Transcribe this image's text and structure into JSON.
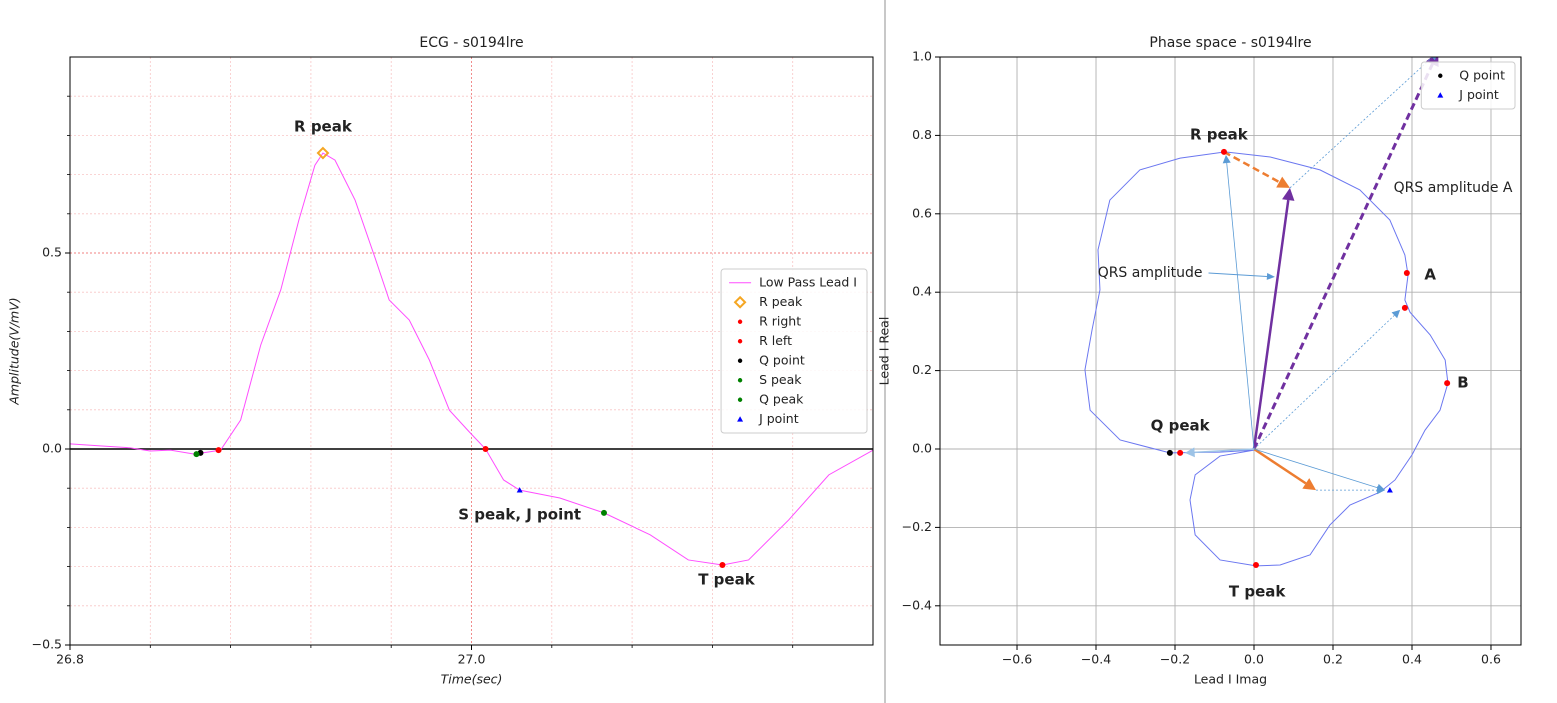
{
  "chart_data": [
    {
      "type": "line",
      "title": "ECG - s0194lre",
      "xlabel": "Time(sec)",
      "ylabel": "Amplitude(V/mV)",
      "xlim": [
        26.8,
        27.2
      ],
      "ylim": [
        -0.5,
        1.0
      ],
      "xticks": [
        26.8,
        {
          "value": 27,
          "label": "27.0"
        }
      ],
      "yticks": [
        {
          "value": -0.5,
          "label": "−0.5"
        },
        {
          "value": 0,
          "label": "0.0"
        },
        0.5
      ],
      "xticks_minor": [
        26.84,
        26.88,
        26.92,
        26.96,
        27.04,
        27.08,
        27.12,
        27.16
      ],
      "yticks_minor": [
        -0.4,
        -0.3,
        -0.2,
        -0.1,
        0.1,
        0.2,
        0.3,
        0.4,
        0.6,
        0.7,
        0.8,
        0.9
      ],
      "grid": true,
      "grid_style": "dotted",
      "grid_color": "#f08080",
      "hlines": [
        0
      ],
      "legend": "center right",
      "series": [
        {
          "name": "Low Pass Lead I",
          "color": "#ff4dff",
          "marker": "none",
          "x": [
            26.8,
            26.815,
            26.83,
            26.84,
            26.85,
            26.862,
            26.875,
            26.885,
            26.895,
            26.905,
            26.914,
            26.922,
            26.926,
            26.932,
            26.942,
            26.952,
            26.959,
            26.969,
            26.979,
            26.989,
            26.999,
            27.007,
            27.016,
            27.024,
            27.044,
            27.066,
            27.089,
            27.108,
            27.125,
            27.138,
            27.158,
            27.178,
            27.2
          ],
          "values": [
            0.013,
            0.008,
            0.003,
            -0.005,
            -0.003,
            -0.013,
            -0.003,
            0.074,
            0.265,
            0.406,
            0.584,
            0.724,
            0.755,
            0.737,
            0.635,
            0.487,
            0.38,
            0.329,
            0.227,
            0.099,
            0.043,
            0.0,
            -0.079,
            -0.105,
            -0.125,
            -0.163,
            -0.219,
            -0.283,
            -0.296,
            -0.283,
            -0.181,
            -0.066,
            -0.003
          ]
        },
        {
          "name": "R peak",
          "color": "#f5a623",
          "marker": "diamond",
          "filled": false,
          "x": [
            26.926
          ],
          "values": [
            0.755
          ]
        },
        {
          "name": "R right",
          "color": "#ff0000",
          "marker": "dot",
          "x": [
            27.007
          ],
          "values": [
            0.0
          ]
        },
        {
          "name": "R left",
          "color": "#ff0000",
          "marker": "dot",
          "x": [
            26.874
          ],
          "values": [
            -0.003
          ]
        },
        {
          "name": "Q point",
          "color": "#000000",
          "marker": "dot",
          "x": [
            26.865
          ],
          "values": [
            -0.01
          ]
        },
        {
          "name": "S peak",
          "color": "#008000",
          "marker": "dot",
          "x": [
            27.066
          ],
          "values": [
            -0.163
          ]
        },
        {
          "name": "Q peak",
          "color": "#008000",
          "marker": "dot",
          "x": [
            26.863
          ],
          "values": [
            -0.013
          ]
        },
        {
          "name": "J point",
          "color": "#0000ff",
          "marker": "triangle",
          "x": [
            27.024
          ],
          "values": [
            -0.105
          ]
        },
        {
          "color": "#ff0000",
          "marker": "dot",
          "x": [
            27.125
          ],
          "values": [
            -0.296
          ]
        }
      ],
      "annotations": [
        {
          "text": "R peak",
          "x": 26.926,
          "y": 0.821,
          "bold": true
        },
        {
          "text": "S peak, J point",
          "x": 27.024,
          "y": -0.168,
          "bold": true
        },
        {
          "text": "T peak",
          "x": 27.127,
          "y": -0.334,
          "bold": true
        }
      ]
    },
    {
      "type": "line",
      "title": "Phase space - s0194lre",
      "xlabel": "Lead I Imag",
      "ylabel": "Lead I Real",
      "xlim": [
        -0.795,
        0.676
      ],
      "ylim": [
        -0.5,
        1.0
      ],
      "xticks": [
        {
          "value": -0.6,
          "label": "−0.6"
        },
        {
          "value": -0.4,
          "label": "−0.4"
        },
        {
          "value": -0.2,
          "label": "−0.2"
        },
        {
          "value": 0,
          "label": "0.0"
        },
        0.2,
        0.4,
        0.6
      ],
      "yticks": [
        {
          "value": -0.4,
          "label": "−0.4"
        },
        {
          "value": -0.2,
          "label": "−0.2"
        },
        {
          "value": 0,
          "label": "0.0"
        },
        0.2,
        0.4,
        0.6,
        0.8,
        {
          "value": 1,
          "label": "1.0"
        }
      ],
      "grid": true,
      "grid_style": "solid",
      "grid_color": "#b0b0b0",
      "legend": "upper right",
      "series": [
        {
          "color": "#6b77f0",
          "marker": "none",
          "x": [
            0,
            -0.086,
            -0.213,
            -0.339,
            -0.415,
            -0.428,
            -0.41,
            -0.39,
            -0.395,
            -0.365,
            -0.289,
            -0.187,
            -0.073,
            0.041,
            0.167,
            0.268,
            0.344,
            0.382,
            0.39,
            0.382,
            0.395,
            0.446,
            0.484,
            0.491,
            0.471,
            0.433,
            0.4,
            0.357,
            0.319,
            0.243,
            0.192,
            0.142,
            0.066,
            0.005,
            -0.086,
            -0.149,
            -0.162,
            -0.149,
            -0.086,
            0
          ],
          "values": [
            -0.003,
            -0.008,
            -0.01,
            0.023,
            0.099,
            0.202,
            0.304,
            0.406,
            0.508,
            0.635,
            0.712,
            0.742,
            0.758,
            0.745,
            0.712,
            0.661,
            0.584,
            0.495,
            0.444,
            0.38,
            0.349,
            0.291,
            0.227,
            0.168,
            0.099,
            0.048,
            -0.015,
            -0.079,
            -0.11,
            -0.143,
            -0.194,
            -0.27,
            -0.296,
            -0.298,
            -0.283,
            -0.219,
            -0.13,
            -0.066,
            -0.018,
            -0.003
          ]
        },
        {
          "name": "Q point",
          "color": "#000000",
          "marker": "dot",
          "x": [
            -0.213
          ],
          "values": [
            -0.01
          ]
        },
        {
          "name": "J point",
          "color": "#0000ff",
          "marker": "triangle",
          "x": [
            0.344
          ],
          "values": [
            -0.105
          ]
        },
        {
          "color": "#ff0000",
          "marker": "dot",
          "x": [
            -0.076,
            0.387,
            0.382,
            0.489,
            0.005,
            -0.187
          ],
          "values": [
            0.758,
            0.449,
            0.36,
            0.168,
            -0.296,
            -0.01
          ]
        }
      ],
      "arrows": [
        {
          "x": 0,
          "y": 0,
          "dx": 0.091,
          "dy": 0.666,
          "color": "#7030a0",
          "style": "solid",
          "width": 2.5
        },
        {
          "x": 0,
          "y": 0,
          "dx": 0.466,
          "dy": 1.013,
          "color": "#7030a0",
          "style": "dashed",
          "width": 3
        },
        {
          "x": -0.076,
          "y": 0.758,
          "dx": 0.167,
          "dy": -0.092,
          "color": "#ed7d31",
          "style": "dashed",
          "width": 2.5
        },
        {
          "x": 0,
          "y": 0,
          "dx": 0.157,
          "dy": -0.105,
          "color": "#ed7d31",
          "style": "solid",
          "width": 2.5
        },
        {
          "x": 0,
          "y": 0,
          "dx": -0.071,
          "dy": 0.75,
          "color": "#5b9bd5",
          "style": "solid",
          "width": 0.8
        },
        {
          "x": 0,
          "y": 0,
          "dx": 0.37,
          "dy": 0.355,
          "color": "#5b9bd5",
          "style": "dotted",
          "width": 0.8
        },
        {
          "x": 0,
          "y": 0,
          "dx": 0.332,
          "dy": -0.105,
          "color": "#5b9bd5",
          "style": "solid",
          "width": 0.8
        },
        {
          "x": 0.091,
          "y": 0.666,
          "dx": 0.375,
          "dy": 0.347,
          "color": "#5b9bd5",
          "style": "dotted",
          "width": 0.8
        },
        {
          "x": 0.157,
          "y": -0.105,
          "dx": 0.175,
          "dy": 0,
          "color": "#5b9bd5",
          "style": "dotted",
          "width": 0.8
        },
        {
          "x": 0,
          "y": 0,
          "dx": -0.175,
          "dy": -0.01,
          "color": "#9dc3e6",
          "style": "solid",
          "width": 1.5
        }
      ],
      "annotations": [
        {
          "text": "R peak",
          "x": -0.089,
          "y": 0.801,
          "bold": true
        },
        {
          "text": "A",
          "x": 0.446,
          "y": 0.444,
          "bold": true
        },
        {
          "text": "B",
          "x": 0.529,
          "y": 0.168,
          "bold": true
        },
        {
          "text": "Q peak",
          "x": -0.187,
          "y": 0.059,
          "bold": true
        },
        {
          "text": "T peak",
          "x": 0.008,
          "y": -0.365,
          "bold": true
        },
        {
          "text": "QRS amplitude",
          "x": -0.263,
          "y": 0.449,
          "bold": false,
          "arrow_to": [
            0.053,
            0.439
          ]
        },
        {
          "text": "QRS amplitude A",
          "x": 0.504,
          "y": 0.666,
          "bold": false
        }
      ]
    }
  ]
}
